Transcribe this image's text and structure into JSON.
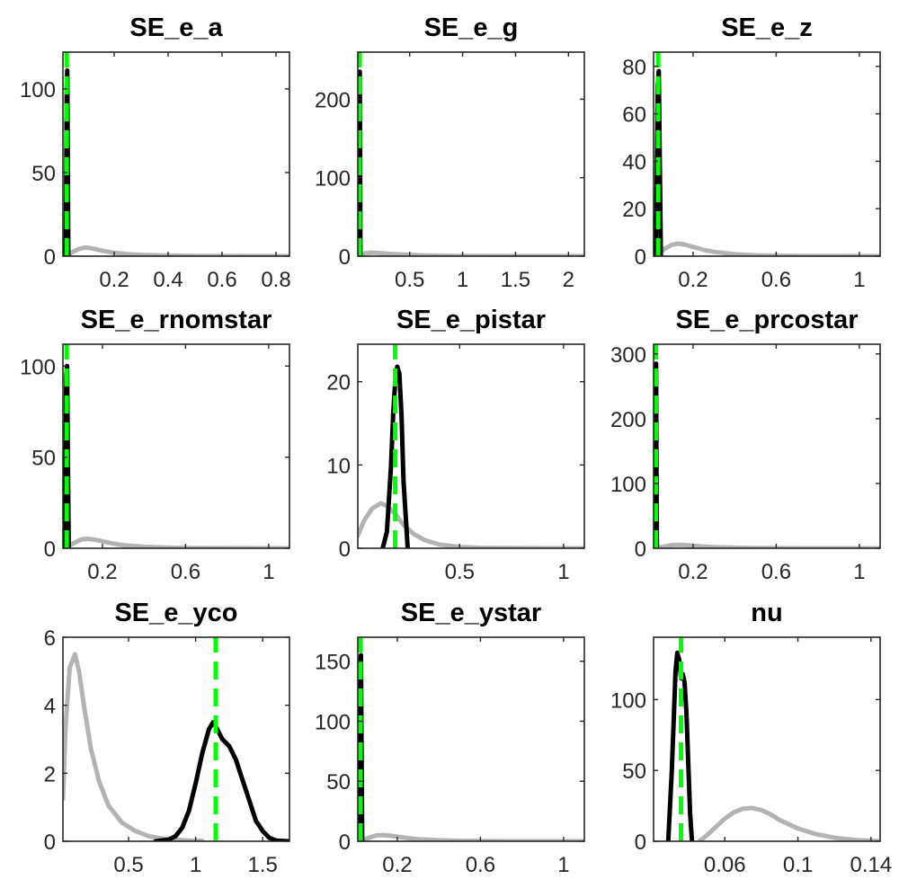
{
  "colors": {
    "prior": "#b3b3b3",
    "posterior": "#000000",
    "mode": "#00ff00",
    "axis": "#262626"
  },
  "chart_data": [
    {
      "type": "line",
      "title": "SE_e_a",
      "xlim": [
        0.01,
        0.85
      ],
      "ylim": [
        0,
        122
      ],
      "xticks": [
        {
          "v": 0.2,
          "label": "0.2"
        },
        {
          "v": 0.4,
          "label": "0.4"
        },
        {
          "v": 0.6,
          "label": "0.6"
        },
        {
          "v": 0.8,
          "label": "0.8"
        }
      ],
      "yticks": [
        {
          "v": 0,
          "label": "0"
        },
        {
          "v": 50,
          "label": "50"
        },
        {
          "v": 100,
          "label": "100"
        }
      ],
      "series": [
        {
          "role": "prior",
          "x": [
            0.01,
            0.02,
            0.035,
            0.05,
            0.07,
            0.09,
            0.11,
            0.13,
            0.16,
            0.2,
            0.25,
            0.3,
            0.4,
            0.5,
            0.6,
            0.7,
            0.85
          ],
          "y": [
            0,
            0.5,
            1.5,
            2.8,
            4.3,
            5.1,
            4.9,
            4.2,
            3.1,
            2.0,
            1.2,
            0.75,
            0.3,
            0.12,
            0.05,
            0.02,
            0
          ]
        },
        {
          "role": "posterior",
          "x": [
            0.02,
            0.022,
            0.024,
            0.026,
            0.028,
            0.03
          ],
          "y": [
            0,
            40,
            100,
            111,
            60,
            0
          ]
        }
      ],
      "mode_x": 0.024
    },
    {
      "type": "line",
      "title": "SE_e_g",
      "xlim": [
        0.01,
        2.15
      ],
      "ylim": [
        0,
        260
      ],
      "xticks": [
        {
          "v": 0.5,
          "label": "0.5"
        },
        {
          "v": 1,
          "label": "1"
        },
        {
          "v": 1.5,
          "label": "1.5"
        },
        {
          "v": 2,
          "label": "2"
        }
      ],
      "yticks": [
        {
          "v": 0,
          "label": "0"
        },
        {
          "v": 100,
          "label": "100"
        },
        {
          "v": 200,
          "label": "200"
        }
      ],
      "series": [
        {
          "role": "prior",
          "x": [
            0.01,
            0.04,
            0.08,
            0.13,
            0.2,
            0.3,
            0.45,
            0.6,
            0.8,
            1.0,
            1.3,
            1.6,
            2.15
          ],
          "y": [
            0,
            1.5,
            3.5,
            4.5,
            4.0,
            3.0,
            1.8,
            1.0,
            0.5,
            0.25,
            0.1,
            0.04,
            0
          ]
        },
        {
          "role": "posterior",
          "x": [
            0.02,
            0.023,
            0.026,
            0.029,
            0.032,
            0.035
          ],
          "y": [
            0,
            80,
            215,
            235,
            120,
            0
          ]
        }
      ],
      "mode_x": 0.027
    },
    {
      "type": "line",
      "title": "SE_e_z",
      "xlim": [
        0.01,
        1.1
      ],
      "ylim": [
        0,
        86
      ],
      "xticks": [
        {
          "v": 0.2,
          "label": "0.2"
        },
        {
          "v": 0.6,
          "label": "0.6"
        },
        {
          "v": 1,
          "label": "1"
        }
      ],
      "yticks": [
        {
          "v": 0,
          "label": "0"
        },
        {
          "v": 20,
          "label": "20"
        },
        {
          "v": 40,
          "label": "40"
        },
        {
          "v": 60,
          "label": "60"
        },
        {
          "v": 80,
          "label": "80"
        }
      ],
      "series": [
        {
          "role": "prior",
          "x": [
            0.01,
            0.03,
            0.05,
            0.07,
            0.1,
            0.13,
            0.16,
            0.2,
            0.25,
            0.3,
            0.4,
            0.5,
            0.6,
            0.8,
            1.1
          ],
          "y": [
            0,
            0.8,
            2.2,
            3.5,
            4.9,
            5.3,
            4.9,
            3.9,
            2.7,
            1.8,
            0.8,
            0.35,
            0.15,
            0.03,
            0
          ]
        },
        {
          "role": "posterior",
          "x": [
            0.02,
            0.025,
            0.03,
            0.035,
            0.04,
            0.045
          ],
          "y": [
            0,
            30,
            72,
            78,
            40,
            0
          ]
        }
      ],
      "mode_x": 0.032
    },
    {
      "type": "line",
      "title": "SE_e_rnomstar",
      "xlim": [
        0.01,
        1.1
      ],
      "ylim": [
        0,
        112
      ],
      "xticks": [
        {
          "v": 0.2,
          "label": "0.2"
        },
        {
          "v": 0.6,
          "label": "0.6"
        },
        {
          "v": 1,
          "label": "1"
        }
      ],
      "yticks": [
        {
          "v": 0,
          "label": "0"
        },
        {
          "v": 50,
          "label": "50"
        },
        {
          "v": 100,
          "label": "100"
        }
      ],
      "series": [
        {
          "role": "prior",
          "x": [
            0.01,
            0.03,
            0.05,
            0.08,
            0.1,
            0.13,
            0.16,
            0.2,
            0.25,
            0.3,
            0.4,
            0.5,
            0.6,
            0.8,
            1.1
          ],
          "y": [
            0,
            0.8,
            2.0,
            3.8,
            4.9,
            5.2,
            4.8,
            3.8,
            2.6,
            1.7,
            0.8,
            0.35,
            0.15,
            0.03,
            0
          ]
        },
        {
          "role": "posterior",
          "x": [
            0.018,
            0.022,
            0.026,
            0.03,
            0.034,
            0.038
          ],
          "y": [
            0,
            40,
            95,
            100,
            50,
            0
          ]
        }
      ],
      "mode_x": 0.028
    },
    {
      "type": "line",
      "title": "SE_e_pistar",
      "xlim": [
        0.01,
        1.1
      ],
      "ylim": [
        0,
        24.5
      ],
      "xticks": [
        {
          "v": 0.5,
          "label": "0.5"
        },
        {
          "v": 1,
          "label": "1"
        }
      ],
      "yticks": [
        {
          "v": 0,
          "label": "0"
        },
        {
          "v": 10,
          "label": "10"
        },
        {
          "v": 20,
          "label": "20"
        }
      ],
      "series": [
        {
          "role": "prior",
          "x": [
            0.01,
            0.04,
            0.08,
            0.12,
            0.15,
            0.19,
            0.23,
            0.28,
            0.33,
            0.4,
            0.5,
            0.6,
            0.8,
            1.1
          ],
          "y": [
            1.5,
            3.3,
            4.8,
            5.4,
            5.1,
            4.1,
            2.8,
            1.7,
            1.0,
            0.45,
            0.15,
            0.05,
            0.01,
            0
          ]
        },
        {
          "role": "posterior",
          "x": [
            0.13,
            0.15,
            0.17,
            0.18,
            0.19,
            0.2,
            0.21,
            0.22,
            0.23,
            0.25
          ],
          "y": [
            0,
            2,
            10,
            16,
            20,
            21.8,
            21,
            16,
            8,
            0
          ]
        }
      ],
      "mode_x": 0.19
    },
    {
      "type": "line",
      "title": "SE_e_prcostar",
      "xlim": [
        0.01,
        1.1
      ],
      "ylim": [
        0,
        315
      ],
      "xticks": [
        {
          "v": 0.2,
          "label": "0.2"
        },
        {
          "v": 0.6,
          "label": "0.6"
        },
        {
          "v": 1,
          "label": "1"
        }
      ],
      "yticks": [
        {
          "v": 0,
          "label": "0"
        },
        {
          "v": 100,
          "label": "100"
        },
        {
          "v": 200,
          "label": "200"
        },
        {
          "v": 300,
          "label": "300"
        }
      ],
      "series": [
        {
          "role": "prior",
          "x": [
            0.01,
            0.03,
            0.05,
            0.08,
            0.1,
            0.13,
            0.16,
            0.2,
            0.25,
            0.3,
            0.4,
            0.5,
            0.6,
            0.8,
            1.1
          ],
          "y": [
            0,
            0.8,
            2.0,
            3.8,
            4.9,
            5.2,
            4.8,
            3.8,
            2.6,
            1.7,
            0.8,
            0.35,
            0.15,
            0.03,
            0
          ]
        },
        {
          "role": "posterior",
          "x": [
            0.016,
            0.018,
            0.02,
            0.022,
            0.024,
            0.026
          ],
          "y": [
            0,
            120,
            270,
            285,
            140,
            0
          ]
        }
      ],
      "mode_x": 0.021
    },
    {
      "type": "line",
      "title": "SE_e_yco",
      "xlim": [
        0.01,
        1.7
      ],
      "ylim": [
        0,
        6
      ],
      "xticks": [
        {
          "v": 0.5,
          "label": "0.5"
        },
        {
          "v": 1,
          "label": "1"
        },
        {
          "v": 1.5,
          "label": "1.5"
        }
      ],
      "yticks": [
        {
          "v": 0,
          "label": "0"
        },
        {
          "v": 2,
          "label": "2"
        },
        {
          "v": 4,
          "label": "4"
        },
        {
          "v": 6,
          "label": "6"
        }
      ],
      "series": [
        {
          "role": "prior",
          "x": [
            0.01,
            0.03,
            0.06,
            0.1,
            0.13,
            0.17,
            0.22,
            0.28,
            0.35,
            0.45,
            0.55,
            0.65,
            0.75,
            0.85,
            0.95,
            1.05
          ],
          "y": [
            1.25,
            3.4,
            5.1,
            5.5,
            5.0,
            3.9,
            2.7,
            1.75,
            1.05,
            0.55,
            0.3,
            0.15,
            0.08,
            0.04,
            0.02,
            0.01
          ]
        },
        {
          "role": "posterior",
          "x": [
            0.7,
            0.8,
            0.85,
            0.9,
            0.95,
            1.0,
            1.05,
            1.1,
            1.13,
            1.16,
            1.2,
            1.25,
            1.3,
            1.35,
            1.4,
            1.45,
            1.5,
            1.55,
            1.6,
            1.7
          ],
          "y": [
            0,
            0.05,
            0.15,
            0.4,
            0.9,
            1.7,
            2.6,
            3.3,
            3.5,
            3.3,
            3.0,
            2.8,
            2.4,
            1.8,
            1.2,
            0.6,
            0.3,
            0.1,
            0.02,
            0
          ]
        }
      ],
      "mode_x": 1.15
    },
    {
      "type": "line",
      "title": "SE_e_ystar",
      "xlim": [
        0.01,
        1.1
      ],
      "ylim": [
        0,
        170
      ],
      "xticks": [
        {
          "v": 0.2,
          "label": "0.2"
        },
        {
          "v": 0.6,
          "label": "0.6"
        },
        {
          "v": 1,
          "label": "1"
        }
      ],
      "yticks": [
        {
          "v": 0,
          "label": "0"
        },
        {
          "v": 50,
          "label": "50"
        },
        {
          "v": 100,
          "label": "100"
        },
        {
          "v": 150,
          "label": "150"
        }
      ],
      "series": [
        {
          "role": "prior",
          "x": [
            0.01,
            0.03,
            0.05,
            0.08,
            0.1,
            0.13,
            0.16,
            0.2,
            0.25,
            0.3,
            0.4,
            0.5,
            0.6,
            0.8,
            1.1
          ],
          "y": [
            0,
            0.8,
            2.0,
            3.8,
            4.9,
            5.2,
            4.8,
            3.8,
            2.6,
            1.7,
            0.8,
            0.35,
            0.15,
            0.03,
            0
          ]
        },
        {
          "role": "posterior",
          "x": [
            0.016,
            0.019,
            0.022,
            0.025,
            0.028,
            0.031
          ],
          "y": [
            0,
            60,
            145,
            155,
            75,
            0
          ]
        }
      ],
      "mode_x": 0.023
    },
    {
      "type": "line",
      "title": "nu",
      "xlim": [
        0.021,
        0.145
      ],
      "ylim": [
        0,
        144
      ],
      "xticks": [
        {
          "v": 0.06,
          "label": "0.06"
        },
        {
          "v": 0.1,
          "label": "0.1"
        },
        {
          "v": 0.14,
          "label": "0.14"
        }
      ],
      "yticks": [
        {
          "v": 0,
          "label": "0"
        },
        {
          "v": 50,
          "label": "50"
        },
        {
          "v": 100,
          "label": "100"
        }
      ],
      "series": [
        {
          "role": "prior",
          "x": [
            0.046,
            0.05,
            0.055,
            0.06,
            0.065,
            0.07,
            0.075,
            0.08,
            0.085,
            0.09,
            0.1,
            0.11,
            0.12,
            0.13,
            0.14,
            0.145
          ],
          "y": [
            0,
            4,
            10,
            16,
            20.5,
            23,
            23.5,
            22,
            19,
            15,
            9,
            5,
            2.5,
            1,
            0.3,
            0
          ]
        },
        {
          "role": "posterior",
          "x": [
            0.029,
            0.031,
            0.033,
            0.034,
            0.035,
            0.036,
            0.037,
            0.038,
            0.039,
            0.04,
            0.041,
            0.042
          ],
          "y": [
            0,
            50,
            120,
            133,
            128,
            115,
            118,
            112,
            90,
            55,
            20,
            0
          ]
        }
      ],
      "mode_x": 0.036
    }
  ]
}
